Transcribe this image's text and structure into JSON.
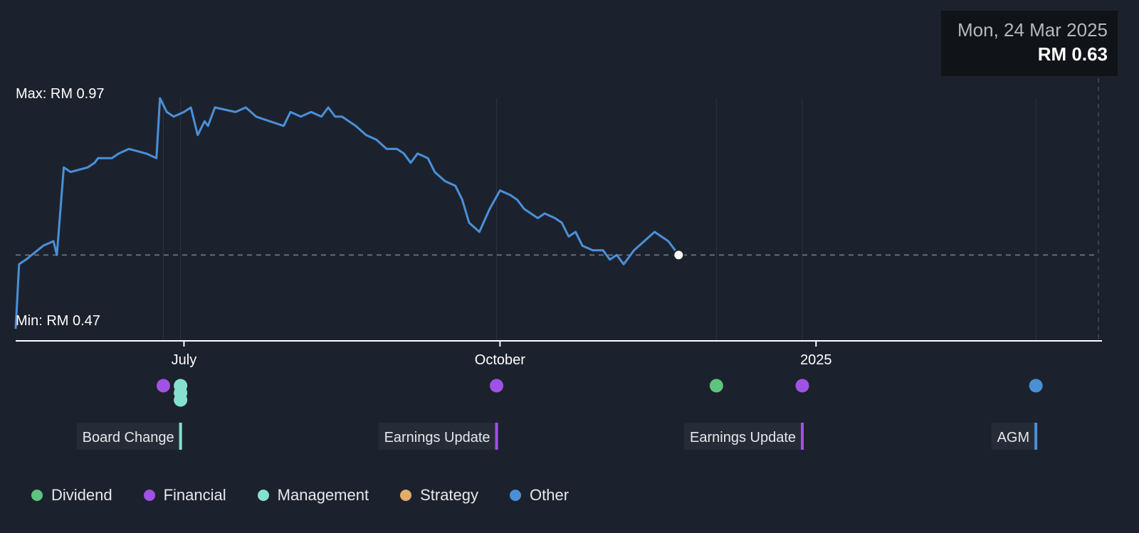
{
  "colors": {
    "background": "#1c222d",
    "line": "#4a90d9",
    "dividend": "#5ec47e",
    "financial": "#a052e6",
    "management": "#86e0cf",
    "strategy": "#e0ad6a",
    "other": "#4a90d9",
    "tag_bg": "#262c37",
    "tooltip_bg": "#101318"
  },
  "tooltip": {
    "date": "Mon, 24 Mar 2025",
    "value": "RM 0.63"
  },
  "chart_data": {
    "type": "line",
    "currency": "RM",
    "ylim": [
      0.47,
      0.97
    ],
    "max_label": "Max: RM 0.97",
    "min_label": "Min: RM 0.47",
    "reference_value": 0.63,
    "x_range": [
      "2024-05-13",
      "2025-03-24"
    ],
    "x_ticks": [
      {
        "label": "July",
        "date": "2024-07-01"
      },
      {
        "label": "October",
        "date": "2024-10-01"
      },
      {
        "label": "2025",
        "date": "2025-01-01"
      }
    ],
    "series": [
      {
        "points": [
          [
            "2024-05-13",
            0.47
          ],
          [
            "2024-05-14",
            0.61
          ],
          [
            "2024-05-16",
            0.62
          ],
          [
            "2024-05-21",
            0.65
          ],
          [
            "2024-05-24",
            0.66
          ],
          [
            "2024-05-25",
            0.63
          ],
          [
            "2024-05-27",
            0.82
          ],
          [
            "2024-05-29",
            0.81
          ],
          [
            "2024-06-03",
            0.82
          ],
          [
            "2024-06-05",
            0.83
          ],
          [
            "2024-06-06",
            0.84
          ],
          [
            "2024-06-10",
            0.84
          ],
          [
            "2024-06-12",
            0.85
          ],
          [
            "2024-06-15",
            0.86
          ],
          [
            "2024-06-20",
            0.85
          ],
          [
            "2024-06-23",
            0.84
          ],
          [
            "2024-06-24",
            0.97
          ],
          [
            "2024-06-26",
            0.94
          ],
          [
            "2024-06-28",
            0.93
          ],
          [
            "2024-07-01",
            0.94
          ],
          [
            "2024-07-03",
            0.95
          ],
          [
            "2024-07-05",
            0.89
          ],
          [
            "2024-07-07",
            0.92
          ],
          [
            "2024-07-08",
            0.91
          ],
          [
            "2024-07-10",
            0.95
          ],
          [
            "2024-07-16",
            0.94
          ],
          [
            "2024-07-19",
            0.95
          ],
          [
            "2024-07-22",
            0.93
          ],
          [
            "2024-07-26",
            0.92
          ],
          [
            "2024-07-30",
            0.91
          ],
          [
            "2024-08-01",
            0.94
          ],
          [
            "2024-08-04",
            0.93
          ],
          [
            "2024-08-07",
            0.94
          ],
          [
            "2024-08-10",
            0.93
          ],
          [
            "2024-08-12",
            0.95
          ],
          [
            "2024-08-14",
            0.93
          ],
          [
            "2024-08-16",
            0.93
          ],
          [
            "2024-08-20",
            0.91
          ],
          [
            "2024-08-23",
            0.89
          ],
          [
            "2024-08-26",
            0.88
          ],
          [
            "2024-08-29",
            0.86
          ],
          [
            "2024-09-01",
            0.86
          ],
          [
            "2024-09-03",
            0.85
          ],
          [
            "2024-09-05",
            0.83
          ],
          [
            "2024-09-07",
            0.85
          ],
          [
            "2024-09-10",
            0.84
          ],
          [
            "2024-09-12",
            0.81
          ],
          [
            "2024-09-15",
            0.79
          ],
          [
            "2024-09-18",
            0.78
          ],
          [
            "2024-09-20",
            0.75
          ],
          [
            "2024-09-22",
            0.7
          ],
          [
            "2024-09-25",
            0.68
          ],
          [
            "2024-09-28",
            0.73
          ],
          [
            "2024-10-01",
            0.77
          ],
          [
            "2024-10-04",
            0.76
          ],
          [
            "2024-10-06",
            0.75
          ],
          [
            "2024-10-08",
            0.73
          ],
          [
            "2024-10-10",
            0.72
          ],
          [
            "2024-10-12",
            0.71
          ],
          [
            "2024-10-14",
            0.72
          ],
          [
            "2024-10-17",
            0.71
          ],
          [
            "2024-10-19",
            0.7
          ],
          [
            "2024-10-21",
            0.67
          ],
          [
            "2024-10-23",
            0.68
          ],
          [
            "2024-10-25",
            0.65
          ],
          [
            "2024-10-28",
            0.64
          ],
          [
            "2024-10-31",
            0.64
          ],
          [
            "2024-11-02",
            0.62
          ],
          [
            "2024-11-04",
            0.63
          ],
          [
            "2024-11-06",
            0.61
          ],
          [
            "2024-11-09",
            0.64
          ],
          [
            "2024-11-12",
            0.66
          ],
          [
            "2024-11-15",
            0.68
          ],
          [
            "2024-11-19",
            0.66
          ],
          [
            "2024-11-22",
            0.63
          ]
        ]
      }
    ],
    "events": [
      {
        "date": "2024-06-25",
        "category": "financial"
      },
      {
        "date": "2024-06-30",
        "category": "management"
      },
      {
        "date": "2024-06-30",
        "category": "management"
      },
      {
        "date": "2024-06-30",
        "category": "management"
      },
      {
        "date": "2024-09-30",
        "category": "financial"
      },
      {
        "date": "2024-12-03",
        "category": "dividend"
      },
      {
        "date": "2024-12-28",
        "category": "financial"
      },
      {
        "date": "2025-03-06",
        "category": "other"
      }
    ],
    "event_tags": [
      {
        "label": "Board Change",
        "date": "2024-06-30",
        "category": "management"
      },
      {
        "label": "Earnings Update",
        "date": "2024-09-30",
        "category": "financial"
      },
      {
        "label": "Earnings Update",
        "date": "2024-12-28",
        "category": "financial"
      },
      {
        "label": "AGM",
        "date": "2025-03-06",
        "category": "other"
      }
    ]
  },
  "legend": [
    {
      "label": "Dividend",
      "key": "dividend"
    },
    {
      "label": "Financial",
      "key": "financial"
    },
    {
      "label": "Management",
      "key": "management"
    },
    {
      "label": "Strategy",
      "key": "strategy"
    },
    {
      "label": "Other",
      "key": "other"
    }
  ]
}
